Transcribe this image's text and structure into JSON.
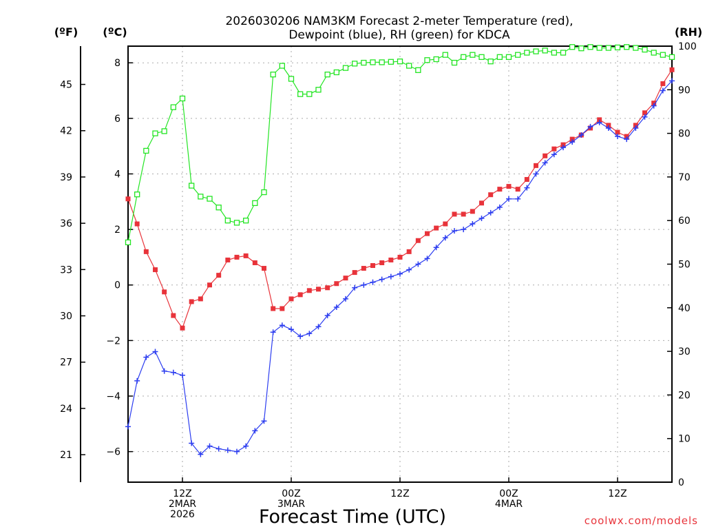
{
  "chart_data": {
    "type": "line",
    "title_line1": "2026030206 NAM3KM Forecast 2-meter Temperature (red),",
    "title_line2": "Dewpoint (blue), RH (green) for KDCA",
    "xlabel": "Forecast Time (UTC)",
    "credit": "coolwx.com/models",
    "left_outer_unit": "(ºF)",
    "left_inner_unit": "(ºC)",
    "right_unit": "(RH)",
    "x_range_hours": [
      0,
      60
    ],
    "celsius_range": [
      -7.1,
      8.6
    ],
    "rh_range": [
      0,
      100
    ],
    "celsius_ticks": [
      -6,
      -4,
      -2,
      0,
      2,
      4,
      6,
      8
    ],
    "fahrenheit_ticks": [
      21,
      24,
      27,
      30,
      33,
      36,
      39,
      42,
      45
    ],
    "rh_ticks": [
      0,
      10,
      20,
      30,
      40,
      50,
      60,
      70,
      80,
      90,
      100
    ],
    "x_ticks": [
      {
        "hour": 6,
        "labels": [
          "12Z",
          "2MAR",
          "2026"
        ]
      },
      {
        "hour": 18,
        "labels": [
          "00Z",
          "3MAR"
        ]
      },
      {
        "hour": 30,
        "labels": [
          "12Z"
        ]
      },
      {
        "hour": 42,
        "labels": [
          "00Z",
          "4MAR"
        ]
      },
      {
        "hour": 54,
        "labels": [
          "12Z"
        ]
      }
    ],
    "series": [
      {
        "name": "2-meter Temperature",
        "units": "C",
        "color": "#e8333a",
        "marker": "filled-square",
        "values": [
          3.1,
          2.2,
          1.2,
          0.55,
          -0.25,
          -1.1,
          -1.55,
          -0.6,
          -0.5,
          0.0,
          0.35,
          0.9,
          1.0,
          1.05,
          0.8,
          0.6,
          -0.85,
          -0.85,
          -0.5,
          -0.35,
          -0.2,
          -0.15,
          -0.1,
          0.05,
          0.25,
          0.45,
          0.6,
          0.7,
          0.8,
          0.9,
          1.0,
          1.2,
          1.6,
          1.85,
          2.05,
          2.2,
          2.55,
          2.55,
          2.65,
          2.95,
          3.25,
          3.45,
          3.55,
          3.45,
          3.8,
          4.3,
          4.65,
          4.9,
          5.05,
          5.25,
          5.4,
          5.65,
          5.95,
          5.75,
          5.5,
          5.35,
          5.75,
          6.2,
          6.55,
          7.25,
          7.75
        ]
      },
      {
        "name": "Dewpoint",
        "units": "C",
        "color": "#2b3cf0",
        "marker": "plus",
        "values": [
          -5.1,
          -3.45,
          -2.6,
          -2.4,
          -3.1,
          -3.15,
          -3.25,
          -5.7,
          -6.1,
          -5.8,
          -5.9,
          -5.95,
          -6.0,
          -5.8,
          -5.25,
          -4.9,
          -1.7,
          -1.45,
          -1.6,
          -1.85,
          -1.75,
          -1.5,
          -1.1,
          -0.8,
          -0.5,
          -0.1,
          0.0,
          0.1,
          0.2,
          0.3,
          0.4,
          0.55,
          0.75,
          0.95,
          1.35,
          1.7,
          1.95,
          2.0,
          2.2,
          2.4,
          2.6,
          2.8,
          3.1,
          3.1,
          3.5,
          4.0,
          4.4,
          4.7,
          4.95,
          5.15,
          5.4,
          5.7,
          5.85,
          5.65,
          5.35,
          5.25,
          5.65,
          6.05,
          6.45,
          7.0,
          7.35
        ]
      },
      {
        "name": "RH",
        "units": "%",
        "color": "#22e522",
        "marker": "open-square",
        "values": [
          55,
          66,
          76,
          80,
          80.5,
          86,
          88,
          68,
          65.5,
          65,
          63,
          60,
          59.5,
          60,
          64,
          66.5,
          93.5,
          95.5,
          92.5,
          89,
          89,
          90,
          93.5,
          94,
          95,
          96,
          96.2,
          96.3,
          96.3,
          96.4,
          96.5,
          95.5,
          94.5,
          96.8,
          97,
          98,
          96.2,
          97.5,
          98,
          97.5,
          96.5,
          97.5,
          97.5,
          98,
          98.5,
          98.8,
          99,
          98.5,
          98.5,
          99.8,
          99.5,
          99.8,
          99.6,
          99.6,
          99.7,
          99.8,
          99.6,
          99.2,
          98.5,
          98,
          97.5
        ]
      }
    ]
  }
}
